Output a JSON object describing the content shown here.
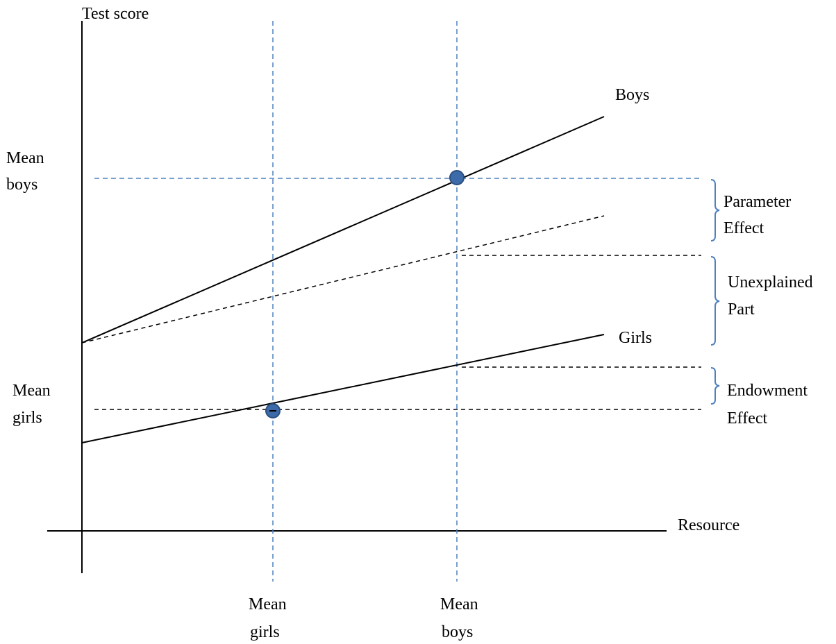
{
  "axes": {
    "y_label": "Test score",
    "x_label": "Resource"
  },
  "lines": {
    "boys": "Boys",
    "girls": "Girls"
  },
  "y_markers": {
    "mean_boys": [
      "Mean",
      "boys"
    ],
    "mean_girls": [
      "Mean",
      "girls"
    ]
  },
  "x_markers": {
    "mean_girls": [
      "Mean",
      "girls"
    ],
    "mean_boys": [
      "Mean",
      "boys"
    ]
  },
  "effects": {
    "parameter": [
      "Parameter",
      "Effect"
    ],
    "unexplained": [
      "Unexplained",
      "Part"
    ],
    "endowment": [
      "Endowment",
      "Effect"
    ]
  },
  "colors": {
    "axis": "#000000",
    "guide_blue": "#4f81bd",
    "point_fill": "#3d6aa8",
    "point_stroke": "#2b4f80",
    "bracket": "#4f81bd"
  }
}
